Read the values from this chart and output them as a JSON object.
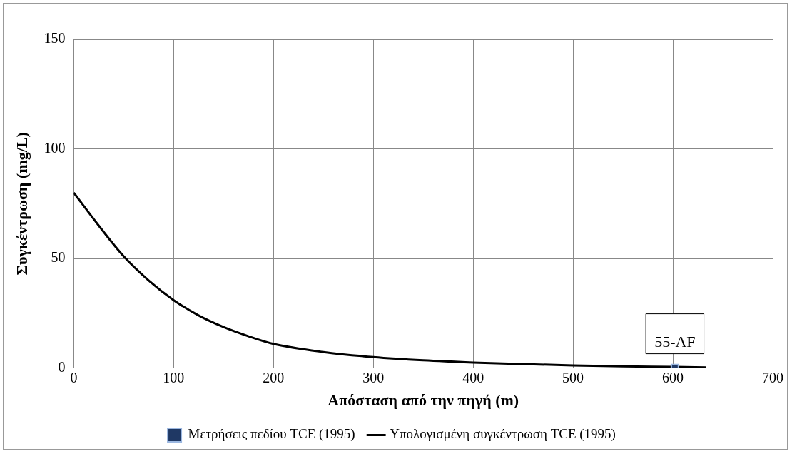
{
  "chart_data": {
    "type": "line",
    "xlabel": "Απόσταση από την πηγή (m)",
    "ylabel": "Συγκέντρωση (mg/L)",
    "xlim": [
      0,
      700
    ],
    "xticks": [
      0,
      100,
      200,
      300,
      400,
      500,
      600,
      700
    ],
    "ylim": [
      0,
      150
    ],
    "yticks": [
      0,
      50,
      100,
      150
    ],
    "grid": true,
    "legend": "bottom",
    "series": [
      {
        "name": "Υπολογισμένη συγκέντρωση TCE (1995)",
        "color": "#000000",
        "marker": "none",
        "line_style": "solid",
        "x": [
          0,
          25,
          50,
          75,
          100,
          125,
          150,
          175,
          200,
          250,
          300,
          350,
          400,
          450,
          500,
          550,
          600,
          633
        ],
        "values": [
          80,
          65,
          51,
          40,
          31,
          24,
          18.7,
          14.5,
          11,
          7.3,
          5,
          3.5,
          2.5,
          1.8,
          1.2,
          0.8,
          0.5,
          0.3
        ]
      },
      {
        "name": "Μετρήσεις πεδίου TCE (1995)",
        "type": "scatter",
        "color": "#1f3864",
        "marker": "square",
        "x": [
          602
        ],
        "values": [
          0
        ]
      }
    ],
    "annotations": [
      {
        "text": "55-AF",
        "x": 602,
        "y": 0
      }
    ]
  }
}
